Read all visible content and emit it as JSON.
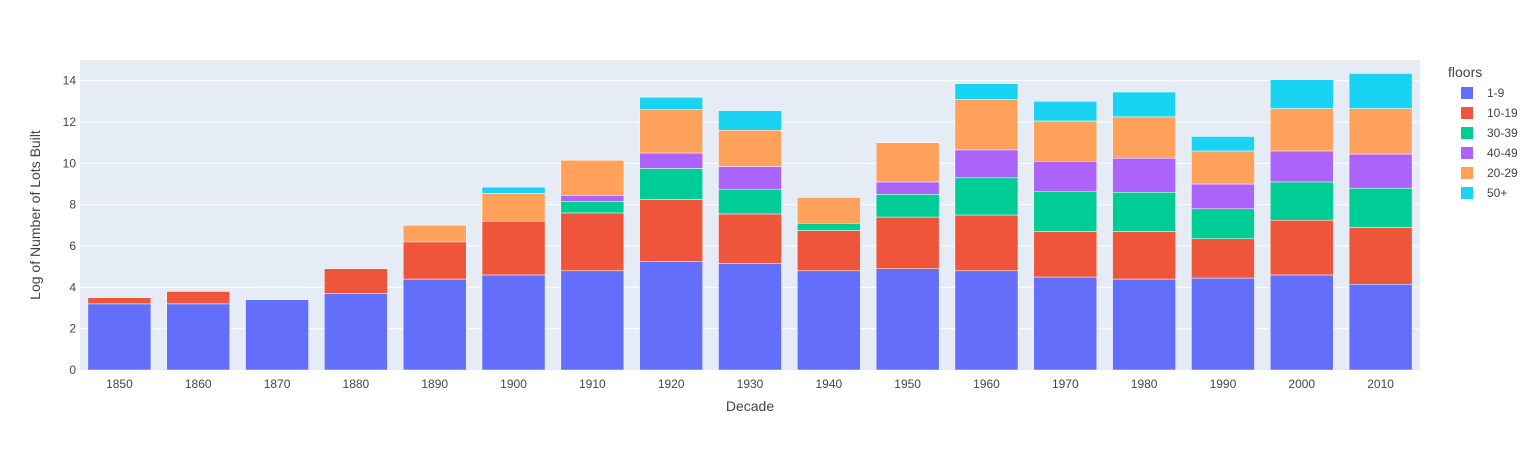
{
  "chart_data": {
    "type": "bar",
    "stacked": true,
    "xlabel": "Decade",
    "ylabel": "Log of Number of Lots Built",
    "ylim": [
      0,
      15
    ],
    "yticks": [
      0,
      2,
      4,
      6,
      8,
      10,
      12,
      14
    ],
    "grid": true,
    "legend_position": "right",
    "legend_title": "floors",
    "categories": [
      "1850",
      "1860",
      "1870",
      "1880",
      "1890",
      "1900",
      "1910",
      "1920",
      "1930",
      "1940",
      "1950",
      "1960",
      "1970",
      "1980",
      "1990",
      "2000",
      "2010"
    ],
    "series": [
      {
        "name": "1-9",
        "color": "#636efa",
        "values": [
          3.2,
          3.2,
          3.4,
          3.7,
          4.4,
          4.6,
          4.8,
          5.25,
          5.15,
          4.8,
          4.9,
          4.8,
          4.5,
          4.4,
          4.45,
          4.6,
          4.15
        ]
      },
      {
        "name": "10-19",
        "color": "#ef553b",
        "values": [
          0.3,
          0.6,
          0.0,
          1.2,
          1.8,
          2.6,
          2.8,
          3.0,
          2.4,
          1.95,
          2.5,
          2.7,
          2.2,
          2.3,
          1.9,
          2.65,
          2.75
        ]
      },
      {
        "name": "30-39",
        "color": "#00cc96",
        "values": [
          0,
          0,
          0,
          0,
          0,
          0,
          0.55,
          1.5,
          1.2,
          0.35,
          1.1,
          1.8,
          1.95,
          1.9,
          1.45,
          1.85,
          1.9
        ]
      },
      {
        "name": "40-49",
        "color": "#ab63fa",
        "values": [
          0,
          0,
          0,
          0,
          0,
          0,
          0.3,
          0.75,
          1.1,
          0,
          0.6,
          1.35,
          1.45,
          1.65,
          1.2,
          1.5,
          1.65
        ]
      },
      {
        "name": "20-29",
        "color": "#ffa15a",
        "values": [
          0,
          0,
          0,
          0,
          0.8,
          1.35,
          1.7,
          2.1,
          1.75,
          1.25,
          1.9,
          2.45,
          1.95,
          2.0,
          1.6,
          2.05,
          2.2
        ]
      },
      {
        "name": "50+",
        "color": "#19d3f3",
        "values": [
          0,
          0,
          0,
          0,
          0,
          0.3,
          0,
          0.6,
          0.95,
          0,
          0,
          0.75,
          0.95,
          1.2,
          0.7,
          1.4,
          1.7
        ]
      }
    ]
  }
}
